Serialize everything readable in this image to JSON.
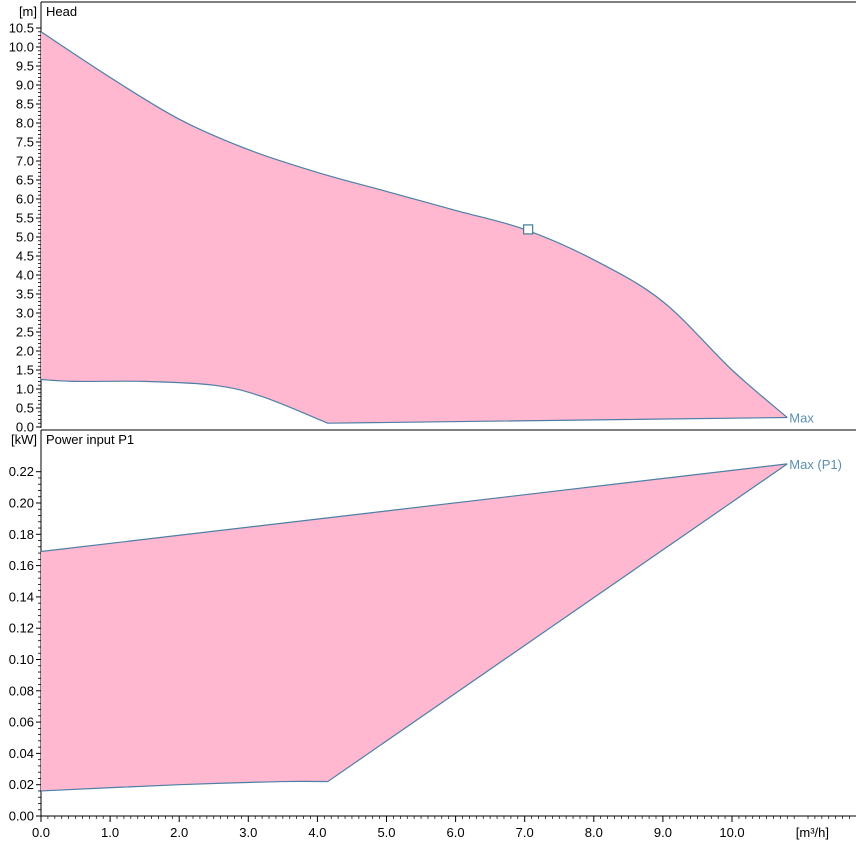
{
  "chart_data": [
    {
      "type": "area",
      "title": "Head",
      "ylabel": "[m]",
      "xlabel": "[m³/h]",
      "xlim": [
        0,
        11.7
      ],
      "ylim": [
        0,
        10.2
      ],
      "x_ticks": [
        "0.0",
        "1.0",
        "2.0",
        "3.0",
        "4.0",
        "5.0",
        "6.0",
        "7.0",
        "8.0",
        "9.0",
        "10.0"
      ],
      "y_ticks": [
        "0.0",
        "0.5",
        "1.0",
        "1.5",
        "2.0",
        "2.5",
        "3.0",
        "3.5",
        "4.0",
        "4.5",
        "5.0",
        "5.5",
        "6.0",
        "6.5",
        "7.0",
        "7.5",
        "8.0",
        "8.5",
        "9.0",
        "9.5",
        "10.0",
        "10.5"
      ],
      "fill_color": "#ffb8d0",
      "line_color": "#4d7fa6",
      "series": [
        {
          "name": "Max",
          "x": [
            0,
            1,
            2,
            3,
            4,
            5,
            6,
            7,
            8,
            9,
            10,
            10.8
          ],
          "y": [
            10.4,
            9.2,
            8.1,
            7.3,
            6.7,
            6.2,
            5.7,
            5.2,
            4.4,
            3.3,
            1.5,
            0.25
          ]
        },
        {
          "name": "",
          "x": [
            0,
            0.5,
            1.5,
            2.5,
            3.2,
            4.15,
            10.8
          ],
          "y": [
            1.25,
            1.2,
            1.2,
            1.1,
            0.8,
            0.1,
            0.25
          ]
        }
      ],
      "marker": {
        "x": 7.05,
        "y": 5.2
      }
    },
    {
      "type": "area",
      "title": "Power input P1",
      "ylabel": "[kW]",
      "xlabel": "[m³/h]",
      "xlim": [
        0,
        11.7
      ],
      "ylim": [
        0,
        0.24
      ],
      "x_ticks": [
        "0.0",
        "1.0",
        "2.0",
        "3.0",
        "4.0",
        "5.0",
        "6.0",
        "7.0",
        "8.0",
        "9.0",
        "10.0"
      ],
      "y_ticks": [
        "0.00",
        "0.02",
        "0.04",
        "0.06",
        "0.08",
        "0.10",
        "0.12",
        "0.14",
        "0.16",
        "0.18",
        "0.20",
        "0.22"
      ],
      "fill_color": "#ffb8d0",
      "line_color": "#4d7fa6",
      "series": [
        {
          "name": "Max (P1)",
          "x": [
            0,
            10.8
          ],
          "y": [
            0.169,
            0.225
          ]
        },
        {
          "name": "",
          "x": [
            0,
            2,
            3.5,
            4.15,
            10.8
          ],
          "y": [
            0.016,
            0.02,
            0.022,
            0.022,
            0.225
          ]
        }
      ]
    }
  ]
}
